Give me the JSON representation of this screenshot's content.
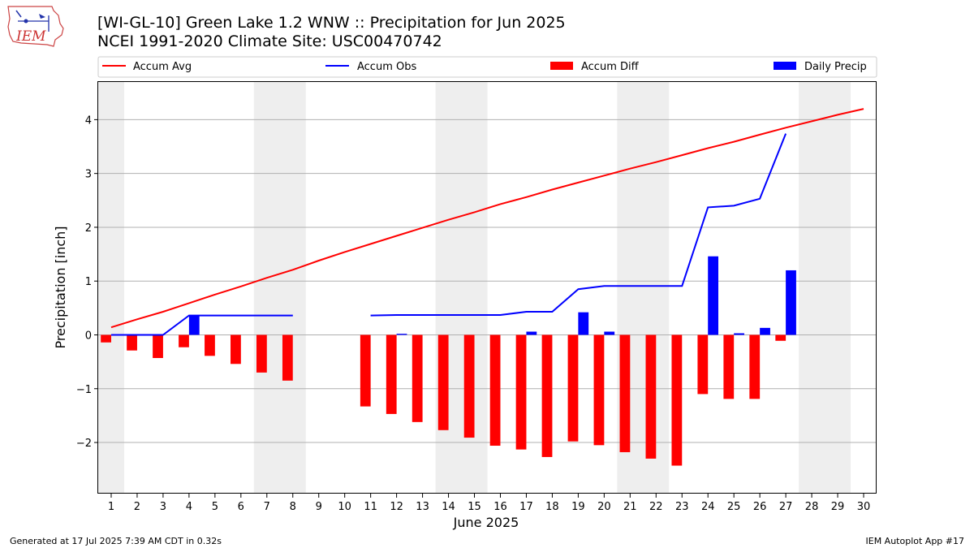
{
  "chart_title": "[WI-GL-10] Green Lake 1.2 WNW :: Precipitation for Jun 2025",
  "chart_subtitle": "NCEI 1991-2020 Climate Site: USC00470742",
  "logo_text": "IEM",
  "footer_left": "Generated at 17 Jul 2025 7:39 AM CDT in 0.32s",
  "footer_right": "IEM Autoplot App #17",
  "colors": {
    "accum_avg": "#ff0000",
    "accum_obs": "#0000ff",
    "accum_diff": "#ff0000",
    "daily_precip": "#0000ff",
    "weekend_shade": "#eeeeee",
    "grid": "#b0b0b0"
  },
  "chart_data": {
    "type": "bar",
    "xlabel": "June 2025",
    "ylabel": "Precipitation [inch]",
    "xlim": [
      0.5,
      30.5
    ],
    "ylim": [
      -2.95,
      4.7
    ],
    "yticks": [
      -2,
      -1,
      0,
      1,
      2,
      3,
      4
    ],
    "ytick_labels": [
      "−2",
      "−1",
      "0",
      "1",
      "2",
      "3",
      "4"
    ],
    "days": [
      1,
      2,
      3,
      4,
      5,
      6,
      7,
      8,
      9,
      10,
      11,
      12,
      13,
      14,
      15,
      16,
      17,
      18,
      19,
      20,
      21,
      22,
      23,
      24,
      25,
      26,
      27,
      28,
      29,
      30
    ],
    "grid": "horizontal",
    "legend_position": "top",
    "shaded_weekends": [
      [
        0.5,
        1.5
      ],
      [
        6.5,
        8.5
      ],
      [
        13.5,
        15.5
      ],
      [
        20.5,
        22.5
      ],
      [
        27.5,
        29.5
      ]
    ],
    "series": [
      {
        "name": "Accum Avg",
        "kind": "line",
        "values": [
          0.14,
          0.29,
          0.43,
          0.59,
          0.75,
          0.9,
          1.06,
          1.21,
          1.38,
          1.54,
          1.69,
          1.84,
          1.99,
          2.14,
          2.28,
          2.43,
          2.56,
          2.7,
          2.83,
          2.96,
          3.09,
          3.21,
          3.34,
          3.47,
          3.59,
          3.72,
          3.85,
          3.97,
          4.09,
          4.2
        ]
      },
      {
        "name": "Accum Obs",
        "kind": "line",
        "values": [
          0.0,
          0.0,
          0.0,
          0.36,
          0.36,
          0.36,
          0.36,
          0.36,
          null,
          null,
          0.36,
          0.37,
          0.37,
          0.37,
          0.37,
          0.37,
          0.43,
          0.43,
          0.85,
          0.91,
          0.91,
          0.91,
          0.91,
          2.37,
          2.4,
          2.53,
          3.74,
          null,
          null,
          null
        ]
      },
      {
        "name": "Accum Diff",
        "kind": "bar",
        "values": [
          -0.14,
          -0.29,
          -0.43,
          -0.23,
          -0.39,
          -0.54,
          -0.7,
          -0.85,
          null,
          null,
          -1.33,
          -1.47,
          -1.62,
          -1.77,
          -1.91,
          -2.06,
          -2.13,
          -2.27,
          -1.98,
          -2.05,
          -2.18,
          -2.3,
          -2.43,
          -1.1,
          -1.19,
          -1.19,
          -0.11,
          null,
          null,
          null
        ]
      },
      {
        "name": "Daily Precip",
        "kind": "bar",
        "values": [
          0,
          0,
          0,
          0.36,
          0,
          0,
          0,
          0,
          null,
          null,
          0,
          0.02,
          0,
          0,
          0,
          0,
          0.06,
          0,
          0.42,
          0.06,
          0,
          0,
          0,
          1.46,
          0.03,
          0.13,
          1.2,
          null,
          null,
          null
        ]
      }
    ]
  }
}
